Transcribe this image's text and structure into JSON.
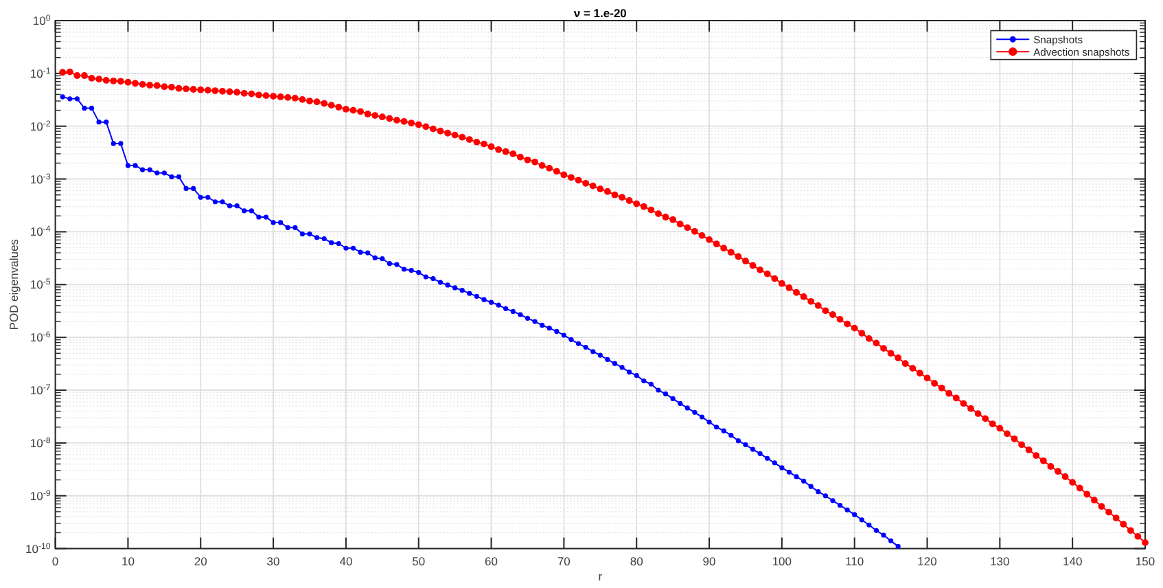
{
  "chart_data": {
    "type": "line",
    "title": "ν = 1.e-20",
    "xlabel": "r",
    "ylabel": "POD eigenvalues",
    "x": [
      1,
      2,
      3,
      4,
      5,
      6,
      7,
      8,
      9,
      10,
      11,
      12,
      13,
      14,
      15,
      16,
      17,
      18,
      19,
      20,
      21,
      22,
      23,
      24,
      25,
      26,
      27,
      28,
      29,
      30,
      31,
      32,
      33,
      34,
      35,
      36,
      37,
      38,
      39,
      40,
      41,
      42,
      43,
      44,
      45,
      46,
      47,
      48,
      49,
      50,
      51,
      52,
      53,
      54,
      55,
      56,
      57,
      58,
      59,
      60,
      61,
      62,
      63,
      64,
      65,
      66,
      67,
      68,
      69,
      70,
      71,
      72,
      73,
      74,
      75,
      76,
      77,
      78,
      79,
      80,
      81,
      82,
      83,
      84,
      85,
      86,
      87,
      88,
      89,
      90,
      91,
      92,
      93,
      94,
      95,
      96,
      97,
      98,
      99,
      100,
      101,
      102,
      103,
      104,
      105,
      106,
      107,
      108,
      109,
      110,
      111,
      112,
      113,
      114,
      115,
      116,
      117,
      118,
      119,
      120,
      121,
      122,
      123,
      124,
      125,
      126,
      127,
      128,
      129,
      130,
      131,
      132,
      133,
      134,
      135,
      136,
      137,
      138,
      139,
      140,
      141,
      142,
      143,
      144,
      145,
      146,
      147,
      148,
      149,
      150
    ],
    "series": [
      {
        "name": "Snapshots",
        "color": "#0000ff",
        "x": [
          1,
          2,
          3,
          4,
          5,
          6,
          7,
          8,
          9,
          10,
          11,
          12,
          13,
          14,
          15,
          16,
          17,
          18,
          19,
          20,
          21,
          22,
          23,
          24,
          25,
          26,
          27,
          28,
          29,
          30,
          31,
          32,
          33,
          34,
          35,
          36,
          37,
          38,
          39,
          40,
          41,
          42,
          43,
          44,
          45,
          46,
          47,
          48,
          49,
          50,
          51,
          52,
          53,
          54,
          55,
          56,
          57,
          58,
          59,
          60,
          61,
          62,
          63,
          64,
          65,
          66,
          67,
          68,
          69,
          70,
          71,
          72,
          73,
          74,
          75,
          76,
          77,
          78,
          79,
          80,
          81,
          82,
          83,
          84,
          85,
          86,
          87,
          88,
          89,
          90,
          91,
          92,
          93,
          94,
          95,
          96,
          97,
          98,
          99,
          100,
          101,
          102,
          103,
          104,
          105,
          106,
          107,
          108,
          109,
          110,
          111,
          112,
          113,
          114,
          115,
          116
        ],
        "values": [
          0.036,
          0.033,
          0.033,
          0.022,
          0.022,
          0.012,
          0.012,
          0.0047,
          0.0047,
          0.0018,
          0.0018,
          0.0015,
          0.0015,
          0.0013,
          0.0013,
          0.0011,
          0.0011,
          0.00066,
          0.00066,
          0.00045,
          0.00045,
          0.00037,
          0.00037,
          0.00031,
          0.00031,
          0.00025,
          0.00025,
          0.00019,
          0.00019,
          0.00015,
          0.00015,
          0.00012,
          0.00012,
          9.1e-05,
          9.1e-05,
          7.8e-05,
          7.4e-05,
          6.2e-05,
          6e-05,
          4.9e-05,
          4.9e-05,
          4.1e-05,
          4e-05,
          3.2e-05,
          3.1e-05,
          2.5e-05,
          2.4e-05,
          1.95e-05,
          1.86e-05,
          1.7e-05,
          1.4e-05,
          1.3e-05,
          1.1e-05,
          9.8e-06,
          8.7e-06,
          7.8e-06,
          6.8e-06,
          6e-06,
          5.2e-06,
          4.6e-06,
          4.1e-06,
          3.5e-06,
          3.1e-06,
          2.7e-06,
          2.3e-06,
          2e-06,
          1.7e-06,
          1.5e-06,
          1.3e-06,
          1.1e-06,
          9.1e-07,
          7.6e-07,
          6.5e-07,
          5.4e-07,
          4.6e-07,
          3.8e-07,
          3.2e-07,
          2.7e-07,
          2.2e-07,
          1.9e-07,
          1.5e-07,
          1.3e-07,
          1e-07,
          8.5e-08,
          6.9e-08,
          5.6e-08,
          4.6e-08,
          3.8e-08,
          3.1e-08,
          2.5e-08,
          2e-08,
          1.7e-08,
          1.4e-08,
          1.1e-08,
          9.3e-09,
          7.6e-09,
          6.3e-09,
          5.1e-09,
          4.2e-09,
          3.4e-09,
          2.8e-09,
          2.3e-09,
          1.9e-09,
          1.5e-09,
          1.2e-09,
          1e-09,
          8.1e-10,
          6.6e-10,
          5.4e-10,
          4.4e-10,
          3.5e-10,
          2.8e-10,
          2.2e-10,
          1.8e-10,
          1.4e-10,
          1.1e-10
        ]
      },
      {
        "name": "Advection snapshots",
        "color": "#ff0000",
        "values": [
          0.105,
          0.107,
          0.091,
          0.091,
          0.081,
          0.078,
          0.074,
          0.072,
          0.071,
          0.068,
          0.065,
          0.062,
          0.06,
          0.059,
          0.056,
          0.055,
          0.052,
          0.051,
          0.05,
          0.049,
          0.048,
          0.047,
          0.046,
          0.045,
          0.044,
          0.042,
          0.041,
          0.039,
          0.038,
          0.037,
          0.036,
          0.035,
          0.034,
          0.032,
          0.03,
          0.029,
          0.027,
          0.025,
          0.023,
          0.021,
          0.02,
          0.019,
          0.017,
          0.016,
          0.015,
          0.014,
          0.013,
          0.0123,
          0.0115,
          0.0107,
          0.0098,
          0.0089,
          0.0081,
          0.0074,
          0.0068,
          0.0062,
          0.0056,
          0.005,
          0.0046,
          0.0041,
          0.0036,
          0.0033,
          0.003,
          0.0026,
          0.0023,
          0.0021,
          0.0018,
          0.0016,
          0.0014,
          0.0012,
          0.00107,
          0.00095,
          0.00083,
          0.00074,
          0.00065,
          0.00058,
          0.0005,
          0.00045,
          0.00039,
          0.00034,
          0.0003,
          0.00026,
          0.00022,
          0.00019,
          0.00017,
          0.00014,
          0.00012,
          0.000102,
          8.5e-05,
          7.1e-05,
          5.9e-05,
          4.9e-05,
          4.1e-05,
          3.4e-05,
          2.8e-05,
          2.3e-05,
          1.9e-05,
          1.6e-05,
          1.3e-05,
          1.05e-05,
          8.7e-06,
          7.1e-06,
          5.9e-06,
          4.8e-06,
          4e-06,
          3.2e-06,
          2.7e-06,
          2.2e-06,
          1.8e-06,
          1.5e-06,
          1.2e-06,
          9.5e-07,
          7.8e-07,
          6.2e-07,
          5e-07,
          4.1e-07,
          3.2e-07,
          2.6e-07,
          2.1e-07,
          1.7e-07,
          1.35e-07,
          1.1e-07,
          8.7e-08,
          7.1e-08,
          5.6e-08,
          4.5e-08,
          3.6e-08,
          2.9e-08,
          2.3e-08,
          1.9e-08,
          1.5e-08,
          1.2e-08,
          9.3e-09,
          7.4e-09,
          5.8e-09,
          4.6e-09,
          3.6e-09,
          2.9e-09,
          2.3e-09,
          1.8e-09,
          1.4e-09,
          1.07e-09,
          8.3e-10,
          6.3e-10,
          4.9e-10,
          3.8e-10,
          2.9e-10,
          2.2e-10,
          1.7e-10,
          1.3e-10
        ]
      }
    ],
    "xlim": [
      0,
      150
    ],
    "xticks": [
      0,
      10,
      20,
      30,
      40,
      50,
      60,
      70,
      80,
      90,
      100,
      110,
      120,
      130,
      140,
      150
    ],
    "ylim": [
      1e-10,
      1
    ],
    "yticks": [
      {
        "value": 1e-10,
        "label": "10$^{-10}$"
      },
      {
        "value": 1e-09,
        "label": "10$^{-9}$"
      },
      {
        "value": 1e-08,
        "label": "10$^{-8}$"
      },
      {
        "value": 1e-07,
        "label": "10$^{-7}$"
      },
      {
        "value": 1e-06,
        "label": "10$^{-6}$"
      },
      {
        "value": 1e-05,
        "label": "10$^{-5}$"
      },
      {
        "value": 0.0001,
        "label": "10$^{-4}$"
      },
      {
        "value": 0.001,
        "label": "10$^{-3}$"
      },
      {
        "value": 0.01,
        "label": "10$^{-2}$"
      },
      {
        "value": 0.1,
        "label": "10$^{-1}$"
      },
      {
        "value": 1,
        "label": "10$^{0}$"
      }
    ],
    "log": "y",
    "grid": true,
    "legend": "top right",
    "marker": "circle",
    "line_style": "solid"
  }
}
